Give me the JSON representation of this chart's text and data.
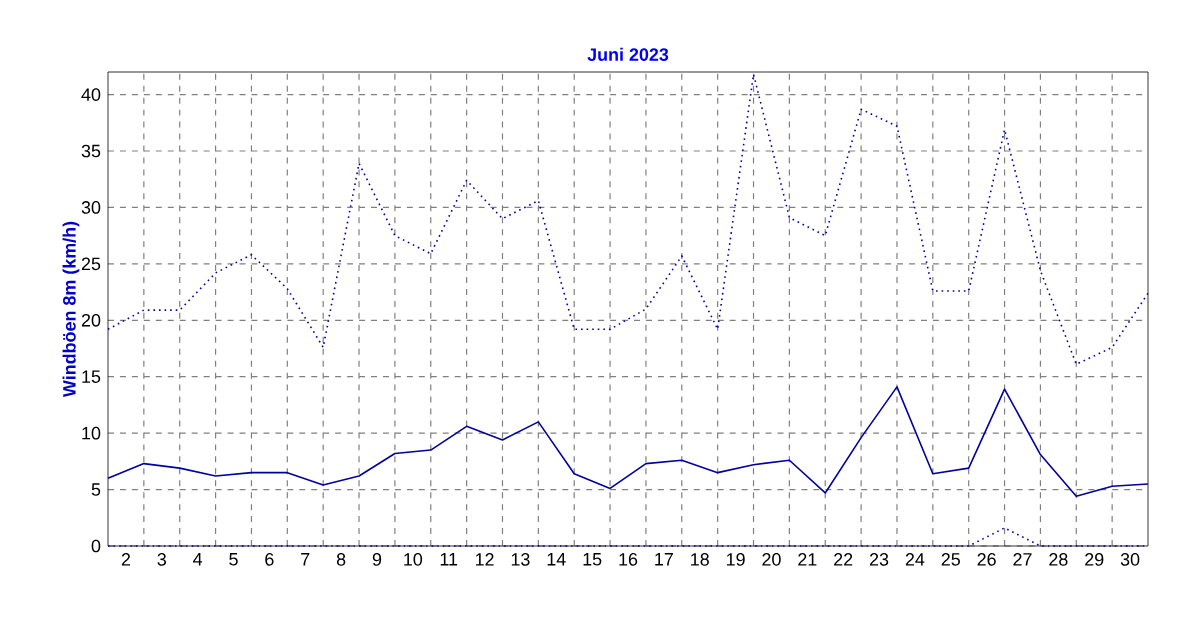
{
  "chart_data": {
    "type": "line",
    "title": "Juni 2023",
    "ylabel": "Windböen 8m  (km/h)",
    "x": [
      1.5,
      2.5,
      3.5,
      4.5,
      5.5,
      6.5,
      7.5,
      8.5,
      9.5,
      10.5,
      11.5,
      12.5,
      13.5,
      14.5,
      15.5,
      16.5,
      17.5,
      18.5,
      19.5,
      20.5,
      21.5,
      22.5,
      23.5,
      24.5,
      25.5,
      26.5,
      27.5,
      28.5,
      29.5,
      30.5
    ],
    "series": [
      {
        "color": "#0000a0",
        "line_style": "dotted",
        "values": [
          19.2,
          20.9,
          20.9,
          24.2,
          25.8,
          22.8,
          17.6,
          33.9,
          27.5,
          25.9,
          32.4,
          29,
          30.6,
          19.2,
          19.2,
          21.0,
          25.7,
          19.2,
          41.8,
          29.1,
          27.5,
          38.7,
          37.2,
          22.6,
          22.6,
          36.9,
          24.4,
          16.1,
          17.6,
          22.4
        ]
      },
      {
        "color": "#0000a0",
        "line_style": "solid",
        "values": [
          6.0,
          7.3,
          6.9,
          6.2,
          6.5,
          6.5,
          5.4,
          6.2,
          8.2,
          8.5,
          10.6,
          9.4,
          11.0,
          6.4,
          5.1,
          7.3,
          7.6,
          6.5,
          7.2,
          7.6,
          4.7,
          9.6,
          14.1,
          6.4,
          6.9,
          13.9,
          8.1,
          4.4,
          5.3,
          5.5
        ]
      },
      {
        "color": "#0000a0",
        "line_style": "dotted",
        "values": [
          0,
          0,
          0,
          0,
          0,
          0,
          0,
          0,
          0,
          0,
          0,
          0,
          0,
          0,
          0,
          0,
          0,
          0,
          0,
          0,
          0,
          0,
          0,
          0,
          0,
          1.6,
          0,
          0,
          0,
          0
        ]
      }
    ],
    "xlim": [
      1.5,
      30.5
    ],
    "xticks": [
      2,
      {
        "value": 2.5,
        "label": null
      },
      3,
      {
        "value": 3.5,
        "label": null
      },
      4,
      {
        "value": 4.5,
        "label": null
      },
      5,
      {
        "value": 5.5,
        "label": null
      },
      6,
      {
        "value": 6.5,
        "label": null
      },
      7,
      {
        "value": 7.5,
        "label": null
      },
      8,
      {
        "value": 8.5,
        "label": null
      },
      9,
      {
        "value": 9.5,
        "label": null
      },
      10,
      {
        "value": 10.5,
        "label": null
      },
      11,
      {
        "value": 11.5,
        "label": null
      },
      12,
      {
        "value": 12.5,
        "label": null
      },
      13,
      {
        "value": 13.5,
        "label": null
      },
      14,
      {
        "value": 14.5,
        "label": null
      },
      15,
      {
        "value": 15.5,
        "label": null
      },
      16,
      {
        "value": 16.5,
        "label": null
      },
      17,
      {
        "value": 17.5,
        "label": null
      },
      18,
      {
        "value": 18.5,
        "label": null
      },
      19,
      {
        "value": 19.5,
        "label": null
      },
      20,
      {
        "value": 20.5,
        "label": null
      },
      21,
      {
        "value": 21.5,
        "label": null
      },
      22,
      {
        "value": 22.5,
        "label": null
      },
      23,
      {
        "value": 23.5,
        "label": null
      },
      24,
      {
        "value": 24.5,
        "label": null
      },
      25,
      {
        "value": 25.5,
        "label": null
      },
      26,
      {
        "value": 26.5,
        "label": null
      },
      27,
      {
        "value": 27.5,
        "label": null
      },
      28,
      {
        "value": 28.5,
        "label": null
      },
      29,
      {
        "value": 29.5,
        "label": null
      },
      30
    ],
    "ylim": [
      0,
      42
    ],
    "yticks": [
      0,
      5,
      10,
      15,
      20,
      25,
      30,
      35,
      40
    ],
    "grid": true,
    "marker": "none"
  }
}
